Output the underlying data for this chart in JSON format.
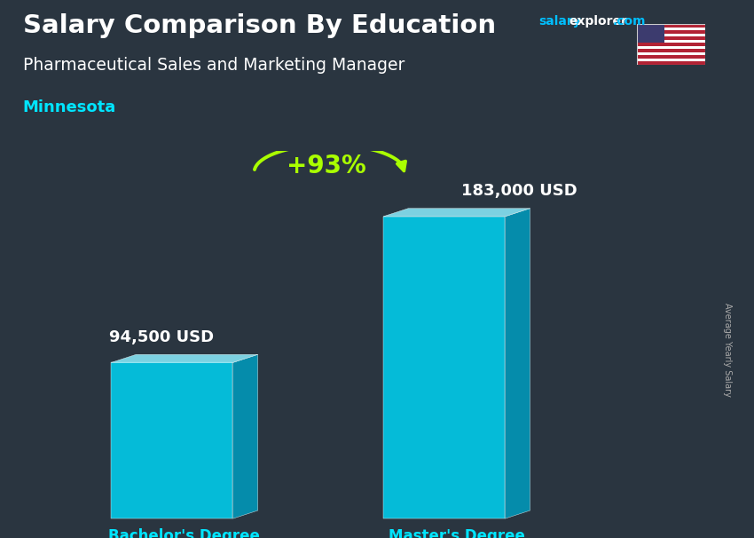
{
  "title": "Salary Comparison By Education",
  "subtitle_job": "Pharmaceutical Sales and Marketing Manager",
  "subtitle_location": "Minnesota",
  "categories": [
    "Bachelor's Degree",
    "Master's Degree"
  ],
  "values": [
    94500,
    183000
  ],
  "value_labels": [
    "94,500 USD",
    "183,000 USD"
  ],
  "pct_change": "+93%",
  "bar_color_face": "#00CFEE",
  "bar_color_side": "#0099BB",
  "bar_color_top": "#88E8F8",
  "ylabel_rotated": "Average Yearly Salary",
  "bg_dark": "#2a3540",
  "header_bg": "#1e2830",
  "title_color": "#FFFFFF",
  "subtitle_color": "#FFFFFF",
  "location_color": "#00E5FF",
  "label_color": "#FFFFFF",
  "cat_label_color": "#00E5FF",
  "pct_color": "#AAFF00",
  "arrow_color": "#AAFF00",
  "site_color_salary": "#00BFFF",
  "site_color_explorer": "#FFFFFF",
  "site_color_com": "#00BFFF",
  "separator_color": "#445566",
  "right_label_color": "#AAAAAA"
}
